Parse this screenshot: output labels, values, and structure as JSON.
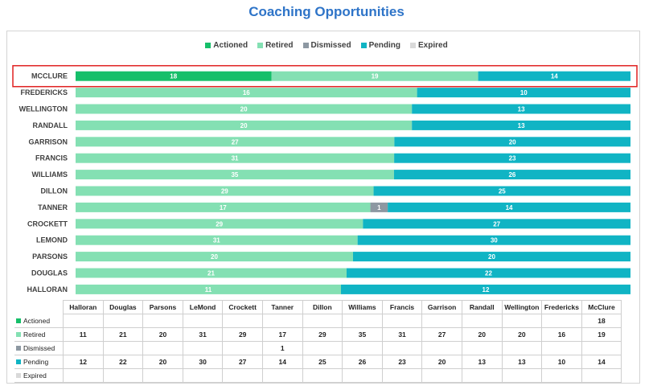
{
  "chart_data": {
    "type": "bar",
    "orientation": "horizontal",
    "stacked": "percent",
    "title": "Coaching Opportunities",
    "legend_position": "top",
    "categories": [
      "MCCLURE",
      "FREDERICKS",
      "WELLINGTON",
      "RANDALL",
      "GARRISON",
      "FRANCIS",
      "WILLIAMS",
      "DILLON",
      "TANNER",
      "CROCKETT",
      "LEMOND",
      "PARSONS",
      "DOUGLAS",
      "HALLORAN"
    ],
    "highlighted_category": "MCCLURE",
    "series": [
      {
        "name": "Actioned",
        "color": "#16bf6a",
        "values": [
          18,
          null,
          null,
          null,
          null,
          null,
          null,
          null,
          null,
          null,
          null,
          null,
          null,
          null
        ]
      },
      {
        "name": "Retired",
        "color": "#84e0b3",
        "values": [
          19,
          16,
          20,
          20,
          27,
          31,
          35,
          29,
          17,
          29,
          31,
          20,
          21,
          11
        ]
      },
      {
        "name": "Dismissed",
        "color": "#8d98a2",
        "values": [
          null,
          null,
          null,
          null,
          null,
          null,
          null,
          null,
          1,
          null,
          null,
          null,
          null,
          null
        ]
      },
      {
        "name": "Pending",
        "color": "#10b4c4",
        "values": [
          14,
          10,
          13,
          13,
          20,
          23,
          26,
          25,
          14,
          27,
          30,
          20,
          22,
          12
        ]
      },
      {
        "name": "Expired",
        "color": "#d9d9d9",
        "values": [
          null,
          null,
          null,
          null,
          null,
          null,
          null,
          null,
          null,
          null,
          null,
          null,
          null,
          null
        ]
      }
    ],
    "grid": false
  },
  "table": {
    "columns": [
      "Halloran",
      "Douglas",
      "Parsons",
      "LeMond",
      "Crockett",
      "Tanner",
      "Dillon",
      "Williams",
      "Francis",
      "Garrison",
      "Randall",
      "Wellington",
      "Fredericks",
      "McClure"
    ],
    "rows": [
      {
        "label": "Actioned",
        "color": "#16bf6a",
        "values": [
          "",
          "",
          "",
          "",
          "",
          "",
          "",
          "",
          "",
          "",
          "",
          "",
          "",
          "18"
        ]
      },
      {
        "label": "Retired",
        "color": "#84e0b3",
        "values": [
          "11",
          "21",
          "20",
          "31",
          "29",
          "17",
          "29",
          "35",
          "31",
          "27",
          "20",
          "20",
          "16",
          "19"
        ]
      },
      {
        "label": "Dismissed",
        "color": "#8d98a2",
        "values": [
          "",
          "",
          "",
          "",
          "",
          "1",
          "",
          "",
          "",
          "",
          "",
          "",
          "",
          ""
        ]
      },
      {
        "label": "Pending",
        "color": "#10b4c4",
        "values": [
          "12",
          "22",
          "20",
          "30",
          "27",
          "14",
          "25",
          "26",
          "23",
          "20",
          "13",
          "13",
          "10",
          "14"
        ]
      },
      {
        "label": "Expired",
        "color": "#d9d9d9",
        "values": [
          "",
          "",
          "",
          "",
          "",
          "",
          "",
          "",
          "",
          "",
          "",
          "",
          "",
          ""
        ]
      }
    ]
  },
  "colors": {
    "title": "#2e74c8",
    "highlight_border": "#e02020"
  }
}
